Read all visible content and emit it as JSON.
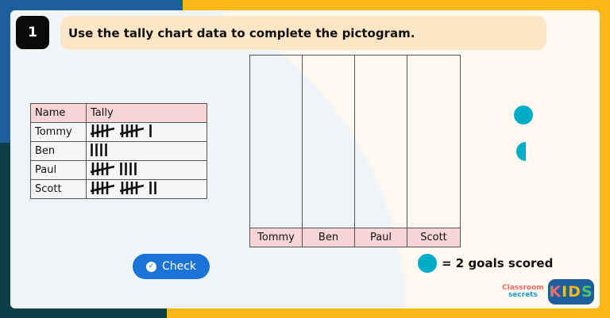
{
  "question_number": "1",
  "question_text": "Use the tally chart data to complete the pictogram.",
  "tally_table": {
    "headers": [
      "Name",
      "Tally"
    ],
    "rows": [
      {
        "name": "Tommy",
        "count": 11
      },
      {
        "name": "Ben",
        "count": 4
      },
      {
        "name": "Paul",
        "count": 9
      },
      {
        "name": "Scott",
        "count": 12
      }
    ]
  },
  "pictogram": {
    "categories": [
      "Tommy",
      "Ben",
      "Paul",
      "Scott"
    ],
    "symbols": [
      "full-circle-icon",
      "half-circle-icon"
    ]
  },
  "key": {
    "icon": "full-circle-icon",
    "text": "= 2 goals scored"
  },
  "check_button": "Check",
  "logos": {
    "classroom": "Classroom",
    "secrets": "secrets",
    "kids": "KIDS"
  },
  "colors": {
    "symbol": "#00adc9",
    "button": "#1a73d6",
    "header_pink": "#f9d6d6",
    "frame": "#fbb815"
  }
}
